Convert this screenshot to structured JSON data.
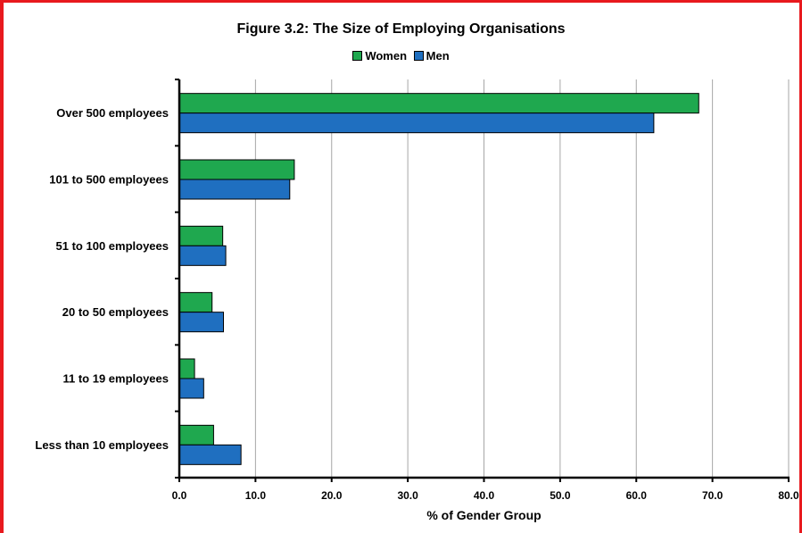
{
  "chart_data": {
    "type": "bar",
    "orientation": "horizontal",
    "title": "Figure 3.2: The Size of Employing Organisations",
    "xlabel": "% of Gender Group",
    "ylabel": "",
    "xlim": [
      0,
      80
    ],
    "xticks": [
      "0.0",
      "10.0",
      "20.0",
      "30.0",
      "40.0",
      "50.0",
      "60.0",
      "70.0",
      "80.0"
    ],
    "categories": [
      "Over 500 employees",
      "101 to 500 employees",
      "51 to 100 employees",
      "20 to 50 employees",
      "11 to 19 employees",
      "Less than 10 employees"
    ],
    "series": [
      {
        "name": "Women",
        "color": "#1fa84f",
        "values": [
          68.2,
          15.1,
          5.7,
          4.3,
          2.0,
          4.5
        ]
      },
      {
        "name": "Men",
        "color": "#1f6fc0",
        "values": [
          62.3,
          14.5,
          6.1,
          5.8,
          3.2,
          8.1
        ]
      }
    ],
    "grid": true,
    "legend_position": "top-center"
  }
}
